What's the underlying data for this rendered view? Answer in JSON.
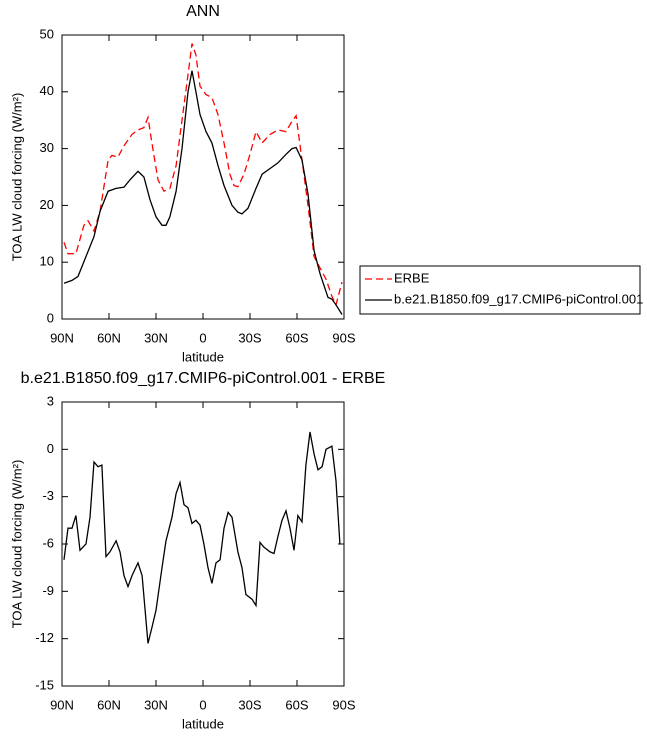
{
  "chart_data": [
    {
      "type": "line",
      "title": "ANN",
      "xlabel": "latitude",
      "ylabel": "TOA LW cloud forcing (W/m²)",
      "xlim": [
        90,
        -90
      ],
      "ylim": [
        0,
        50
      ],
      "xticks": [
        {
          "value": 90,
          "label": "90N"
        },
        {
          "value": 60,
          "label": "60N"
        },
        {
          "value": 30,
          "label": "30N"
        },
        0,
        {
          "value": -30,
          "label": "30S"
        },
        {
          "value": -60,
          "label": "60S"
        },
        {
          "value": -90,
          "label": "90S"
        }
      ],
      "yticks": [
        0,
        10,
        20,
        30,
        40,
        50
      ],
      "legend": "right",
      "series": [
        {
          "name": "ERBE",
          "color": "#ff0000",
          "dashed": true,
          "x": [
            88.7,
            86.2,
            81.1,
            76.0,
            73.4,
            69.6,
            65.7,
            60.6,
            58.1,
            54.3,
            50.4,
            45.3,
            41.5,
            37.7,
            35.1,
            32.6,
            28.7,
            24.9,
            21.1,
            17.2,
            13.4,
            9.6,
            7.0,
            4.5,
            1.9,
            -1.9,
            -5.7,
            -9.6,
            -13.4,
            -17.2,
            -19.8,
            -22.3,
            -26.2,
            -30.0,
            -33.8,
            -37.7,
            -42.8,
            -47.9,
            -53.0,
            -56.8,
            -59.4,
            -63.2,
            -67.0,
            -70.9,
            -74.7,
            -78.5,
            -82.3,
            -84.9,
            -88.7
          ],
          "values": [
            13.5,
            11.5,
            11.5,
            16.5,
            17.3,
            15.5,
            19,
            28,
            28.8,
            28.5,
            30.5,
            32.5,
            33.3,
            33.7,
            35.5,
            31,
            24.5,
            22.5,
            23,
            27,
            35,
            43,
            48.5,
            46.5,
            41,
            39.5,
            39,
            36,
            31,
            25.5,
            23.5,
            23.3,
            25.5,
            29,
            33,
            31,
            32.5,
            33.3,
            33,
            34.8,
            35.8,
            28,
            20,
            11,
            9,
            7,
            4,
            2.5,
            6.5
          ]
        },
        {
          "name": "b.e21.B1850.f09_g17.CMIP6-piControl.001",
          "color": "#000000",
          "dashed": false,
          "x": [
            88.7,
            83.6,
            79.8,
            74.7,
            69.6,
            65.7,
            60.6,
            55.5,
            50.4,
            46.6,
            41.5,
            37.7,
            33.8,
            30.0,
            26.2,
            23.6,
            21.1,
            17.2,
            13.4,
            9.6,
            7.0,
            4.5,
            1.9,
            -1.9,
            -5.7,
            -9.6,
            -13.4,
            -18.5,
            -22.3,
            -24.9,
            -28.7,
            -33.8,
            -37.7,
            -42.8,
            -47.9,
            -53.0,
            -56.8,
            -59.4,
            -63.2,
            -67.0,
            -70.9,
            -74.7,
            -79.8,
            -82.3,
            -84.9,
            -88.7
          ],
          "values": [
            6.3,
            6.8,
            7.5,
            11,
            14.5,
            19,
            22.5,
            23,
            23.2,
            24.5,
            26,
            25,
            21,
            18,
            16.5,
            16.5,
            18,
            22.5,
            30,
            40,
            43.7,
            40,
            36,
            33,
            31,
            27,
            23.5,
            20,
            18.8,
            18.5,
            19.5,
            23,
            25.5,
            26.5,
            27.5,
            29,
            30,
            30.2,
            28,
            22,
            12,
            8,
            3.8,
            3.5,
            2.5,
            0.8
          ]
        }
      ]
    },
    {
      "type": "line",
      "title": "b.e21.B1850.f09_g17.CMIP6-piControl.001 - ERBE",
      "xlabel": "latitude",
      "ylabel": "TOA LW cloud forcing (W/m²)",
      "xlim": [
        90,
        -90
      ],
      "ylim": [
        -15,
        3
      ],
      "xticks": [
        {
          "value": 90,
          "label": "90N"
        },
        {
          "value": 60,
          "label": "60N"
        },
        {
          "value": 30,
          "label": "30N"
        },
        0,
        {
          "value": -30,
          "label": "30S"
        },
        {
          "value": -60,
          "label": "60S"
        },
        {
          "value": -90,
          "label": "90S"
        }
      ],
      "yticks": [
        -15,
        -12,
        -9,
        -6,
        -3,
        0,
        3
      ],
      "color": "#000000",
      "x": [
        88.7,
        86.2,
        83.6,
        81.1,
        78.5,
        74.7,
        72.1,
        69.6,
        67.0,
        64.5,
        61.9,
        59.4,
        55.5,
        53.0,
        50.4,
        47.9,
        45.3,
        41.5,
        38.9,
        35.1,
        32.6,
        30.0,
        26.2,
        23.6,
        19.8,
        17.2,
        14.7,
        12.1,
        9.6,
        7.0,
        4.5,
        1.9,
        -0.6,
        -3.2,
        -5.7,
        -8.3,
        -10.9,
        -13.4,
        -16.0,
        -18.5,
        -22.3,
        -24.9,
        -27.4,
        -31.3,
        -33.8,
        -36.4,
        -38.9,
        -42.8,
        -45.3,
        -47.9,
        -50.4,
        -53.0,
        -55.5,
        -58.1,
        -60.6,
        -63.2,
        -65.7,
        -68.3,
        -70.9,
        -73.4,
        -76.0,
        -78.5,
        -82.3,
        -84.9,
        -87.4
      ],
      "values": [
        -7,
        -5,
        -5,
        -4.2,
        -6.4,
        -6,
        -4.3,
        -0.8,
        -1.1,
        -1,
        -6.8,
        -6.5,
        -5.8,
        -6.5,
        -8,
        -8.7,
        -8,
        -7.2,
        -8,
        -12.3,
        -11.3,
        -10.2,
        -7.5,
        -5.8,
        -4.3,
        -2.8,
        -2.1,
        -3.5,
        -3.7,
        -4.7,
        -4.5,
        -4.8,
        -6,
        -7.5,
        -8.5,
        -7.2,
        -7,
        -5,
        -4,
        -4.3,
        -6.5,
        -7.5,
        -9.2,
        -9.5,
        -9.9,
        -5.9,
        -6.2,
        -6.5,
        -6.6,
        -5.5,
        -4.5,
        -3.9,
        -5,
        -6.4,
        -4.2,
        -4.6,
        -1,
        1.1,
        -0.3,
        -1.3,
        -1.1,
        0,
        0.2,
        -2,
        -6
      ]
    }
  ]
}
